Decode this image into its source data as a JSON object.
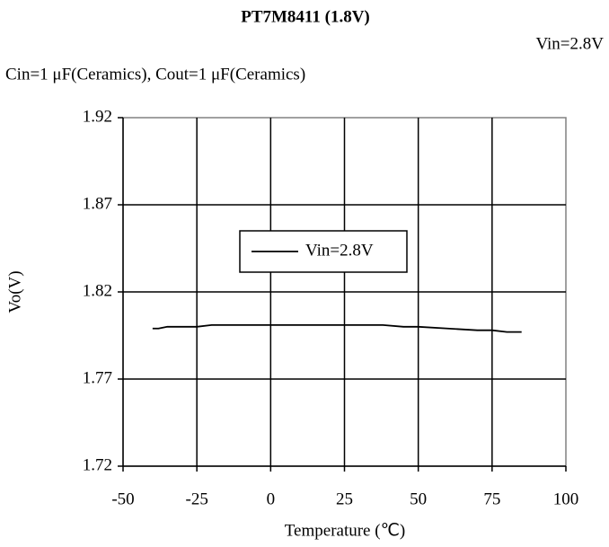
{
  "chart_data": {
    "type": "line",
    "title": "PT7M8411 (1.8V)",
    "annotation": "Vin=2.8V",
    "subtitle": "Cin=1 μF(Ceramics), Cout=1 μF(Ceramics)",
    "x_label": "Temperature (℃)",
    "y_label": "Vo(V)",
    "x": [
      -40,
      -38,
      -35,
      -25,
      -20,
      0,
      25,
      38,
      45,
      50,
      60,
      70,
      75,
      80,
      85
    ],
    "series": [
      {
        "name": "Vin=2.8V",
        "color": "#000000",
        "values": [
          1.799,
          1.799,
          1.8,
          1.8,
          1.801,
          1.801,
          1.801,
          1.801,
          1.8,
          1.8,
          1.799,
          1.798,
          1.798,
          1.797,
          1.797
        ]
      }
    ],
    "xlim": [
      -50,
      100
    ],
    "xticks": [
      -50,
      -25,
      0,
      25,
      50,
      75,
      100
    ],
    "ylim": [
      1.72,
      1.92
    ],
    "yticks": [
      1.72,
      1.77,
      1.82,
      1.87,
      1.92
    ],
    "grid": true
  }
}
